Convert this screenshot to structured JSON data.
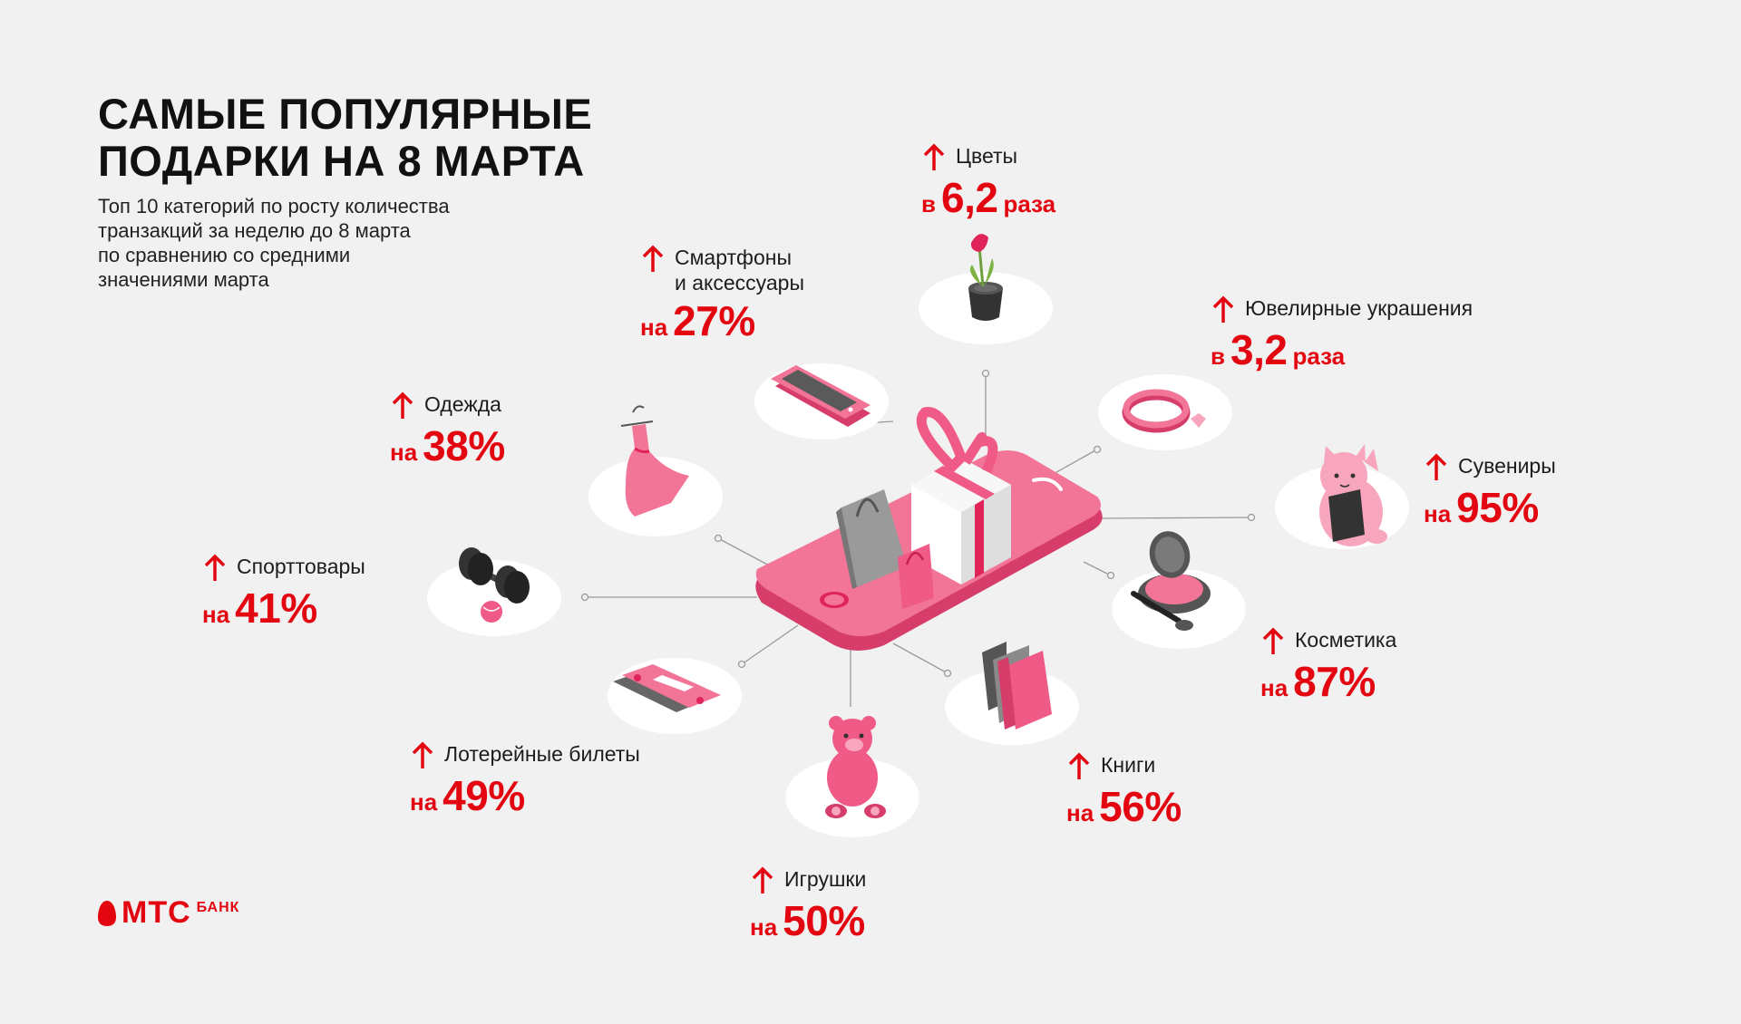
{
  "title": {
    "line1": "САМЫЕ ПОПУЛЯРНЫЕ",
    "line2": "ПОДАРКИ НА 8 МАРТА"
  },
  "subtitle": {
    "line1": "Топ 10 категорий по росту количества",
    "line2": "транзакций за неделю до 8 марта",
    "line3": "по сравнению со средними",
    "line4": "значениями марта"
  },
  "categories": {
    "flowers": {
      "label": "Цветы",
      "prefix": "в",
      "value": "6,2",
      "suffix": "раза",
      "icon": "flower-pot-icon"
    },
    "smartphones": {
      "label1": "Смартфоны",
      "label2": "и аксессуары",
      "prefix": "на",
      "value": "27%",
      "icon": "smartphone-icon"
    },
    "jewelry": {
      "label": "Ювелирные украшения",
      "prefix": "в",
      "value": "3,2",
      "suffix": "раза",
      "icon": "bracelet-icon"
    },
    "clothes": {
      "label": "Одежда",
      "prefix": "на",
      "value": "38%",
      "icon": "dress-icon"
    },
    "souvenirs": {
      "label": "Сувениры",
      "prefix": "на",
      "value": "95%",
      "icon": "lucky-cat-icon"
    },
    "sports": {
      "label": "Спорттовары",
      "prefix": "на",
      "value": "41%",
      "icon": "dumbbell-icon"
    },
    "cosmetics": {
      "label": "Косметика",
      "prefix": "на",
      "value": "87%",
      "icon": "compact-powder-icon"
    },
    "lottery": {
      "label": "Лотерейные билеты",
      "prefix": "на",
      "value": "49%",
      "icon": "lottery-ticket-icon"
    },
    "books": {
      "label": "Книги",
      "prefix": "на",
      "value": "56%",
      "icon": "books-icon"
    },
    "toys": {
      "label": "Игрушки",
      "prefix": "на",
      "value": "50%",
      "icon": "teddy-bear-icon"
    }
  },
  "logo": {
    "brand": "МТС",
    "sub": "БАНК"
  },
  "colors": {
    "accent": "#e30611",
    "pink": "#f0608a",
    "background": "#f1f1f1"
  }
}
